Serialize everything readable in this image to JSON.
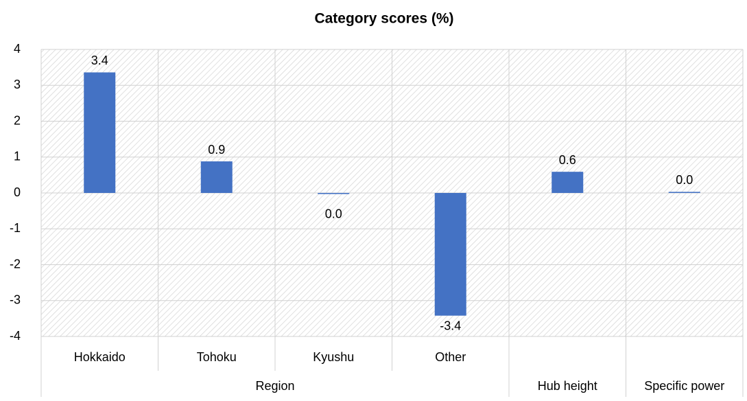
{
  "chart_data": {
    "type": "bar",
    "title": "Category scores (%)",
    "categories": [
      "Hokkaido",
      "Tohoku",
      "Kyushu",
      "Other",
      null,
      null
    ],
    "groups": [
      {
        "name": "Region",
        "size": 4
      },
      {
        "name": "Hub height",
        "size": 1
      },
      {
        "name": "Specific power",
        "size": 1
      }
    ],
    "values": [
      3.36,
      0.88,
      -0.03,
      -3.42,
      0.59,
      0.03
    ],
    "value_labels": [
      "3.4",
      "0.9",
      "0.0",
      "-3.4",
      "0.6",
      "0.0"
    ],
    "color": "#4472c4",
    "ylim": [
      -4,
      4
    ],
    "yticks": [
      -4,
      -3,
      -2,
      -1,
      0,
      1,
      2,
      3,
      4
    ],
    "grid": true
  }
}
